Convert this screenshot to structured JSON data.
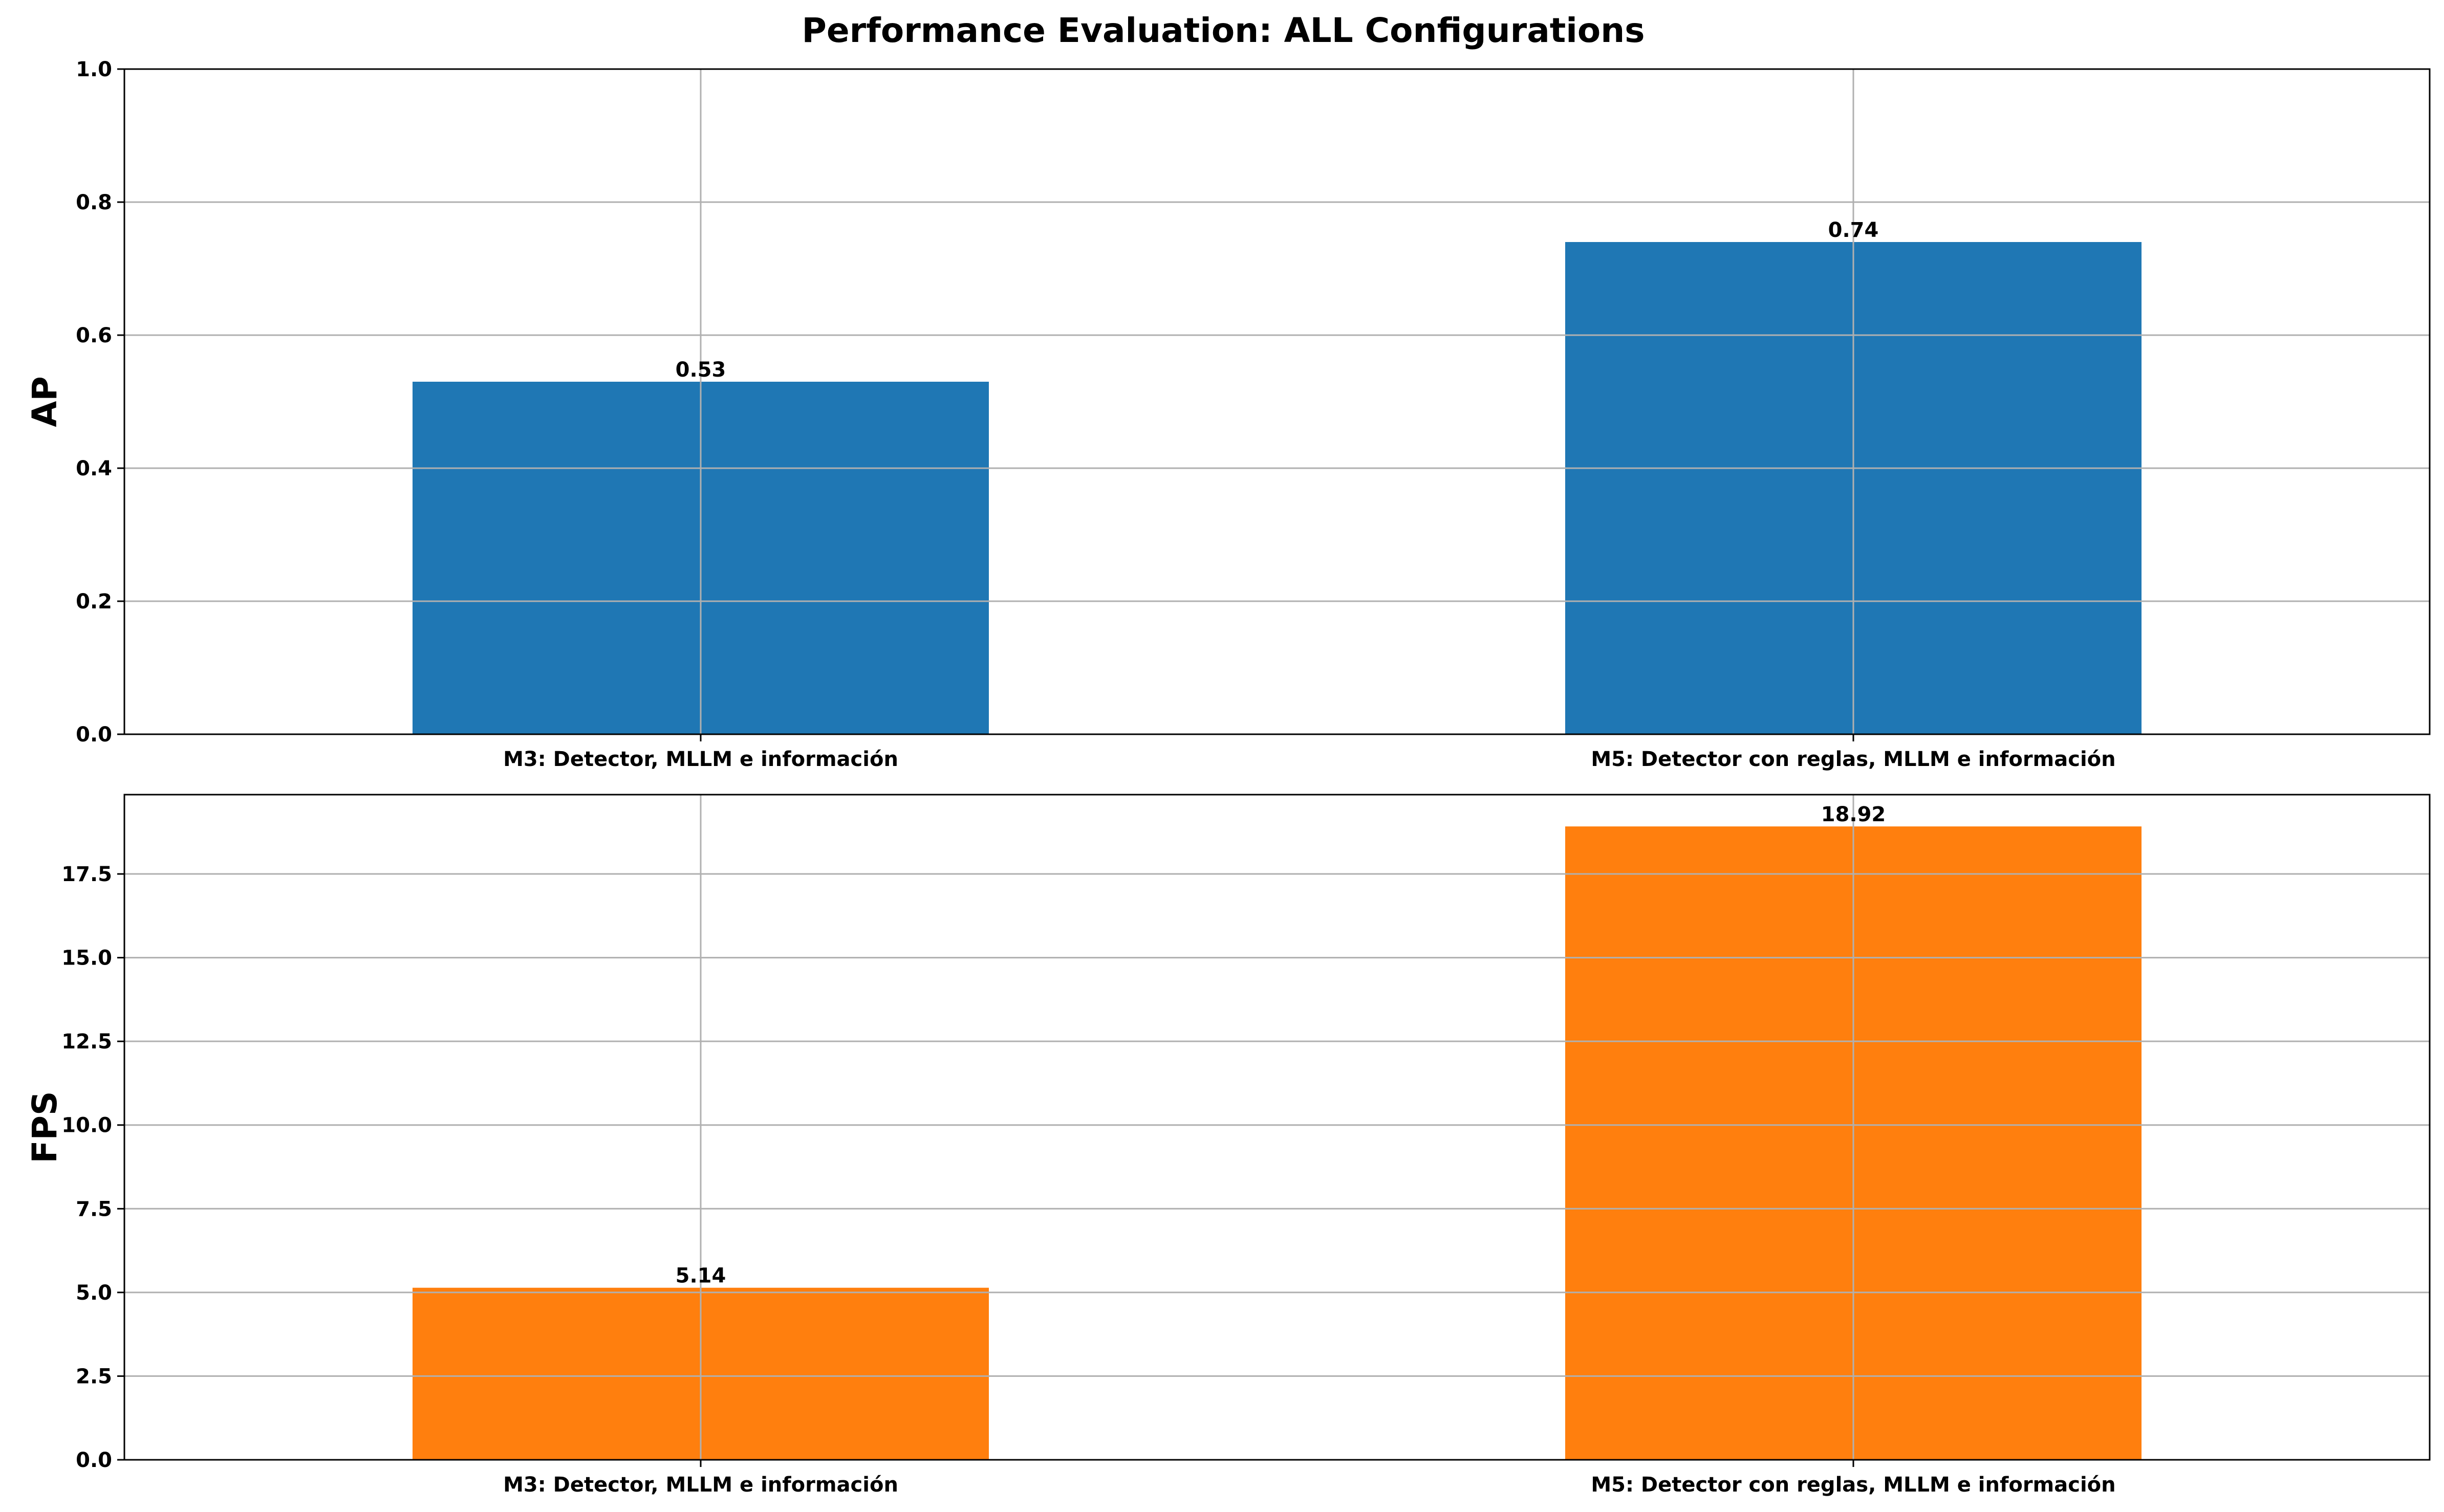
{
  "figure_title": "Performance Evaluation: ALL Configurations",
  "chart_data": [
    {
      "type": "bar",
      "title": "",
      "xlabel": "",
      "ylabel": "AP",
      "categories": [
        "M3: Detector, MLLM e información",
        "M5: Detector con reglas, MLLM e información"
      ],
      "values": [
        0.53,
        0.74
      ],
      "value_labels": [
        "0.53",
        "0.74"
      ],
      "ylim": [
        0,
        1.0
      ],
      "yticks": [
        0.0,
        0.2,
        0.4,
        0.6,
        0.8,
        1.0
      ],
      "ytick_labels": [
        "0.0",
        "0.2",
        "0.4",
        "0.6",
        "0.8",
        "1.0"
      ],
      "color": "#1f77b4",
      "grid": true,
      "legend": "none"
    },
    {
      "type": "bar",
      "title": "",
      "xlabel": "",
      "ylabel": "FPS",
      "categories": [
        "M3: Detector, MLLM e información",
        "M5: Detector con reglas, MLLM e información"
      ],
      "values": [
        5.14,
        18.92
      ],
      "value_labels": [
        "5.14",
        "18.92"
      ],
      "ylim": [
        0,
        19.87
      ],
      "yticks": [
        0.0,
        2.5,
        5.0,
        7.5,
        10.0,
        12.5,
        15.0,
        17.5
      ],
      "ytick_labels": [
        "0.0",
        "2.5",
        "5.0",
        "7.5",
        "10.0",
        "12.5",
        "15.0",
        "17.5"
      ],
      "color": "#ff7f0e",
      "grid": true,
      "legend": "none"
    }
  ]
}
